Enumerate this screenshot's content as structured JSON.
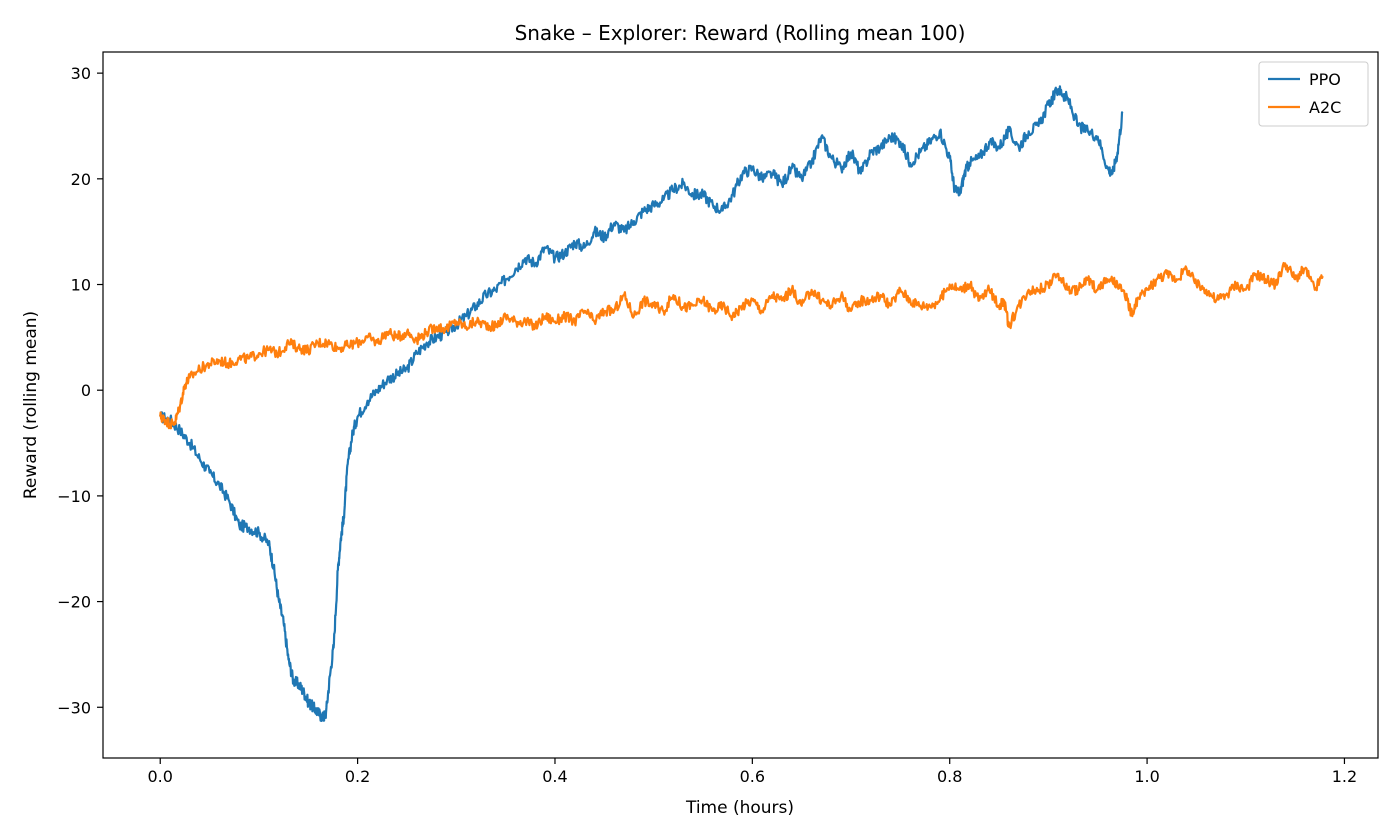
{
  "chart_data": {
    "type": "line",
    "title": "Snake – Explorer: Reward (Rolling mean 100)",
    "xlabel": "Time (hours)",
    "ylabel": "Reward (rolling mean)",
    "xlim": [
      -0.058,
      1.234
    ],
    "ylim": [
      -34.8,
      32.0
    ],
    "xticks": [
      0.0,
      0.2,
      0.4,
      0.6,
      0.8,
      1.0,
      1.2
    ],
    "xtick_labels": [
      "0.0",
      "0.2",
      "0.4",
      "0.6",
      "0.8",
      "1.0",
      "1.2"
    ],
    "yticks": [
      -30,
      -20,
      -10,
      0,
      10,
      20,
      30
    ],
    "ytick_labels": [
      "−30",
      "−20",
      "−10",
      "0",
      "10",
      "20",
      "30"
    ],
    "grid": false,
    "legend": "upper right",
    "series": [
      {
        "name": "PPO",
        "color": "#1f77b4",
        "x": [
          0.0,
          0.01,
          0.02,
          0.03,
          0.04,
          0.05,
          0.06,
          0.07,
          0.08,
          0.09,
          0.1,
          0.11,
          0.115,
          0.12,
          0.125,
          0.13,
          0.135,
          0.14,
          0.145,
          0.15,
          0.155,
          0.16,
          0.165,
          0.168,
          0.172,
          0.176,
          0.18,
          0.183,
          0.186,
          0.19,
          0.195,
          0.2,
          0.21,
          0.22,
          0.23,
          0.24,
          0.25,
          0.26,
          0.27,
          0.28,
          0.29,
          0.3,
          0.31,
          0.32,
          0.33,
          0.34,
          0.35,
          0.36,
          0.37,
          0.38,
          0.39,
          0.4,
          0.41,
          0.42,
          0.43,
          0.44,
          0.45,
          0.46,
          0.47,
          0.48,
          0.49,
          0.5,
          0.51,
          0.52,
          0.53,
          0.54,
          0.55,
          0.56,
          0.57,
          0.58,
          0.59,
          0.6,
          0.61,
          0.62,
          0.63,
          0.64,
          0.65,
          0.66,
          0.67,
          0.68,
          0.69,
          0.7,
          0.71,
          0.72,
          0.73,
          0.74,
          0.75,
          0.76,
          0.77,
          0.78,
          0.79,
          0.8,
          0.805,
          0.81,
          0.815,
          0.82,
          0.83,
          0.84,
          0.85,
          0.86,
          0.87,
          0.88,
          0.89,
          0.9,
          0.91,
          0.915,
          0.92,
          0.93,
          0.94,
          0.95,
          0.96,
          0.965,
          0.97,
          0.975
        ],
        "y": [
          -2.5,
          -2.8,
          -3.8,
          -5.0,
          -6.5,
          -7.8,
          -9.0,
          -10.5,
          -12.8,
          -13.0,
          -13.5,
          -14.5,
          -16.8,
          -19.8,
          -22.0,
          -25.5,
          -27.5,
          -27.8,
          -28.5,
          -29.5,
          -30.0,
          -30.5,
          -31.0,
          -30.5,
          -27.0,
          -24.0,
          -17.0,
          -14.0,
          -12.0,
          -7.0,
          -4.0,
          -2.5,
          -1.0,
          0.0,
          1.0,
          1.5,
          2.0,
          3.5,
          4.5,
          5.0,
          5.5,
          6.2,
          7.0,
          8.0,
          9.0,
          9.5,
          10.5,
          11.5,
          12.5,
          12.0,
          13.5,
          12.5,
          13.0,
          14.0,
          13.5,
          15.0,
          14.5,
          15.8,
          15.0,
          16.0,
          17.0,
          17.5,
          18.0,
          19.0,
          19.5,
          18.5,
          18.5,
          17.5,
          17.0,
          18.5,
          20.5,
          21.0,
          20.0,
          20.5,
          19.5,
          21.0,
          20.0,
          21.5,
          24.0,
          22.0,
          21.0,
          22.5,
          20.5,
          22.5,
          23.0,
          24.0,
          23.5,
          21.5,
          22.5,
          23.5,
          24.5,
          22.0,
          19.0,
          18.5,
          20.5,
          21.5,
          22.0,
          23.5,
          23.0,
          24.5,
          23.0,
          24.5,
          25.0,
          27.0,
          28.5,
          28.0,
          27.5,
          25.0,
          24.5,
          24.0,
          21.0,
          20.5,
          22.5,
          26.2
        ]
      },
      {
        "name": "A2C",
        "color": "#ff7f0e",
        "x": [
          0.0,
          0.005,
          0.01,
          0.015,
          0.02,
          0.025,
          0.03,
          0.04,
          0.05,
          0.06,
          0.07,
          0.08,
          0.09,
          0.1,
          0.11,
          0.12,
          0.13,
          0.14,
          0.15,
          0.16,
          0.17,
          0.18,
          0.19,
          0.2,
          0.21,
          0.22,
          0.23,
          0.24,
          0.25,
          0.26,
          0.27,
          0.28,
          0.29,
          0.3,
          0.31,
          0.32,
          0.33,
          0.34,
          0.35,
          0.36,
          0.37,
          0.38,
          0.39,
          0.4,
          0.41,
          0.42,
          0.43,
          0.44,
          0.45,
          0.46,
          0.47,
          0.48,
          0.49,
          0.5,
          0.51,
          0.52,
          0.53,
          0.54,
          0.55,
          0.56,
          0.57,
          0.58,
          0.59,
          0.6,
          0.61,
          0.62,
          0.63,
          0.64,
          0.65,
          0.66,
          0.67,
          0.68,
          0.69,
          0.7,
          0.71,
          0.72,
          0.73,
          0.74,
          0.75,
          0.76,
          0.77,
          0.78,
          0.79,
          0.8,
          0.81,
          0.82,
          0.83,
          0.84,
          0.85,
          0.855,
          0.86,
          0.87,
          0.88,
          0.89,
          0.9,
          0.91,
          0.92,
          0.93,
          0.94,
          0.95,
          0.96,
          0.97,
          0.98,
          0.985,
          0.99,
          1.0,
          1.01,
          1.02,
          1.03,
          1.04,
          1.05,
          1.06,
          1.07,
          1.08,
          1.09,
          1.1,
          1.11,
          1.12,
          1.13,
          1.14,
          1.15,
          1.16,
          1.17,
          1.178
        ],
        "y": [
          -2.5,
          -2.8,
          -3.2,
          -3.0,
          -1.5,
          0.5,
          1.2,
          2.0,
          2.5,
          2.8,
          2.5,
          3.0,
          3.0,
          3.5,
          3.8,
          3.5,
          4.5,
          4.0,
          3.8,
          4.5,
          4.5,
          4.0,
          4.2,
          4.5,
          5.0,
          4.5,
          5.5,
          5.0,
          5.5,
          4.8,
          5.5,
          6.0,
          5.8,
          6.5,
          6.0,
          6.5,
          6.2,
          6.0,
          7.0,
          6.5,
          6.5,
          6.0,
          7.0,
          6.5,
          7.0,
          6.5,
          7.5,
          6.5,
          7.5,
          7.5,
          9.0,
          7.0,
          8.5,
          8.0,
          7.5,
          9.0,
          7.8,
          8.0,
          8.5,
          7.5,
          8.0,
          7.0,
          8.0,
          8.5,
          7.5,
          9.0,
          8.5,
          9.5,
          8.0,
          9.5,
          8.5,
          8.0,
          9.0,
          7.5,
          8.5,
          8.5,
          9.0,
          8.0,
          9.5,
          8.5,
          8.0,
          8.0,
          8.5,
          10.0,
          9.5,
          10.0,
          8.5,
          9.5,
          8.0,
          8.5,
          6.0,
          8.0,
          9.5,
          9.5,
          10.0,
          11.0,
          9.5,
          9.5,
          10.5,
          9.5,
          10.5,
          10.0,
          8.5,
          7.0,
          8.5,
          9.5,
          10.5,
          11.0,
          10.5,
          11.5,
          10.0,
          9.5,
          8.5,
          9.0,
          10.0,
          9.5,
          11.0,
          10.5,
          10.0,
          12.0,
          10.5,
          11.5,
          9.5,
          10.8
        ]
      }
    ]
  }
}
